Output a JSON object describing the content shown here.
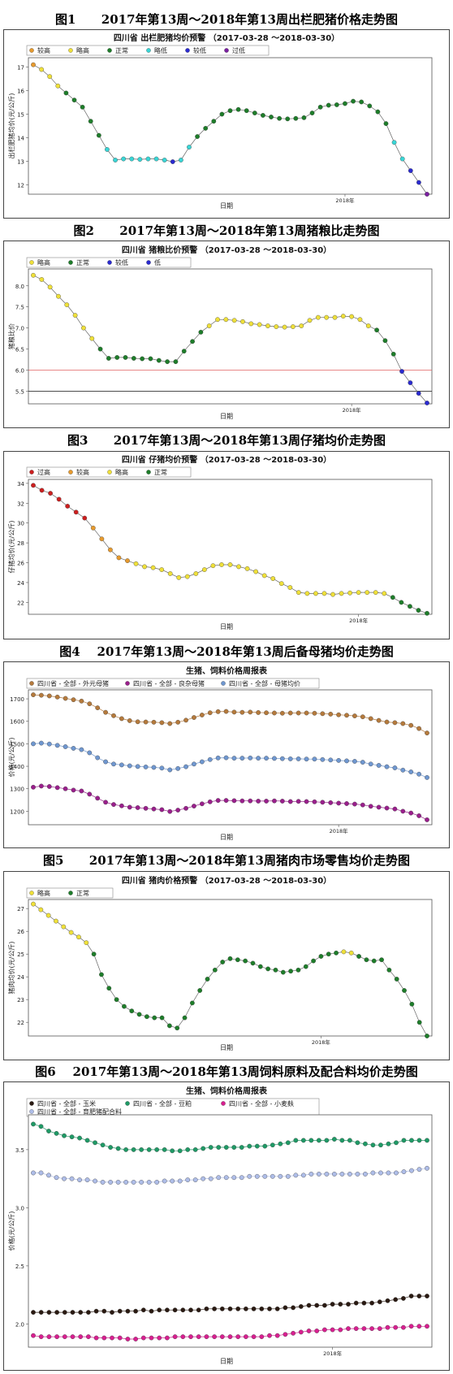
{
  "figures": [
    {
      "id": "fig1",
      "caption": "图1      2017年第13周～2018年第13周出栏肥猪价格走势图"
    },
    {
      "id": "fig2",
      "caption": "图2      2017年第13周～2018年第13周猪粮比走势图"
    },
    {
      "id": "fig3",
      "caption": "图3      2017年第13周～2018年第13周仔猪均价走势图"
    },
    {
      "id": "fig4",
      "caption": "图4    2017年第13周～2018年第13周后备母猪均价走势图"
    },
    {
      "id": "fig5",
      "caption": "图5      2017年第13周～2018年第13周猪肉市场零售均价走势图"
    },
    {
      "id": "fig6",
      "caption": "图6    2017年第13周～2018年第13周饲料原料及配合料均价走势图"
    }
  ],
  "status_colors": {
    "过高": "#cc1f1f",
    "较高": "#e69a2e",
    "略高": "#efe03a",
    "正常": "#1e7d2a",
    "略低": "#39d6d6",
    "较低": "#2a2ad0",
    "低": "#2a2ad0",
    "过低": "#7a1fa0"
  },
  "chart_data": [
    {
      "id": "fig1",
      "type": "scatter",
      "title": "四川省 出栏肥猪均价预警 （2017-03-28 ～2018-03-30）",
      "xlabel": "日期",
      "ylabel": "出栏肥猪均价(元/公斤)",
      "ylim": [
        11.6,
        17.4
      ],
      "yticks": [
        12,
        13,
        14,
        15,
        16,
        17
      ],
      "xtick_labels": [
        {
          "i": 38,
          "label": "2018年"
        }
      ],
      "legend": [
        "较高",
        "略高",
        "正常",
        "略低",
        "较低",
        "过低"
      ],
      "values": [
        17.1,
        16.9,
        16.6,
        16.2,
        15.9,
        15.6,
        15.3,
        14.7,
        14.1,
        13.5,
        13.05,
        13.1,
        13.1,
        13.08,
        13.1,
        13.1,
        13.05,
        12.98,
        13.05,
        13.6,
        14.05,
        14.4,
        14.7,
        15.0,
        15.15,
        15.2,
        15.15,
        15.05,
        14.95,
        14.88,
        14.82,
        14.8,
        14.82,
        14.85,
        15.05,
        15.3,
        15.38,
        15.4,
        15.45,
        15.55,
        15.52,
        15.35,
        15.1,
        14.6,
        13.8,
        13.1,
        12.6,
        12.1,
        11.6
      ],
      "status": [
        "较高",
        "略高",
        "略高",
        "略高",
        "正常",
        "正常",
        "正常",
        "正常",
        "正常",
        "略低",
        "略低",
        "略低",
        "略低",
        "略低",
        "略低",
        "略低",
        "略低",
        "较低",
        "略低",
        "略低",
        "正常",
        "正常",
        "正常",
        "正常",
        "正常",
        "正常",
        "正常",
        "正常",
        "正常",
        "正常",
        "正常",
        "正常",
        "正常",
        "正常",
        "正常",
        "正常",
        "正常",
        "正常",
        "正常",
        "正常",
        "正常",
        "正常",
        "正常",
        "正常",
        "略低",
        "略低",
        "较低",
        "较低",
        "过低"
      ]
    },
    {
      "id": "fig2",
      "type": "scatter",
      "title": "四川省 猪粮比价预警 （2017-03-28 ～2018-03-30）",
      "xlabel": "日期",
      "ylabel": "猪粮比价",
      "ylim": [
        5.2,
        8.4
      ],
      "yticks": [
        5.5,
        6.0,
        6.5,
        7.0,
        7.5,
        8.0
      ],
      "xtick_labels": [
        {
          "i": 38,
          "label": "2018年"
        }
      ],
      "ref_lines": [
        {
          "y": 6.0,
          "color": "#e06060"
        },
        {
          "y": 5.5,
          "color": "#333333"
        }
      ],
      "legend": [
        "略高",
        "正常",
        "较低",
        "低"
      ],
      "values": [
        8.25,
        8.15,
        7.97,
        7.75,
        7.55,
        7.3,
        7.0,
        6.75,
        6.5,
        6.28,
        6.3,
        6.3,
        6.28,
        6.27,
        6.27,
        6.23,
        6.2,
        6.2,
        6.45,
        6.68,
        6.9,
        7.05,
        7.2,
        7.2,
        7.18,
        7.15,
        7.1,
        7.08,
        7.05,
        7.03,
        7.02,
        7.03,
        7.05,
        7.18,
        7.25,
        7.25,
        7.25,
        7.28,
        7.27,
        7.2,
        7.05,
        6.95,
        6.7,
        6.38,
        5.97,
        5.7,
        5.45,
        5.22
      ],
      "status": [
        "略高",
        "略高",
        "略高",
        "略高",
        "略高",
        "略高",
        "略高",
        "略高",
        "正常",
        "正常",
        "正常",
        "正常",
        "正常",
        "正常",
        "正常",
        "正常",
        "正常",
        "正常",
        "正常",
        "正常",
        "正常",
        "略高",
        "略高",
        "略高",
        "略高",
        "略高",
        "略高",
        "略高",
        "略高",
        "略高",
        "略高",
        "略高",
        "略高",
        "略高",
        "略高",
        "略高",
        "略高",
        "略高",
        "略高",
        "略高",
        "略高",
        "正常",
        "正常",
        "正常",
        "较低",
        "较低",
        "低",
        "低"
      ]
    },
    {
      "id": "fig3",
      "type": "scatter",
      "title": "四川省 仔猪均价预警 （2017-03-28 ～2018-03-30）",
      "xlabel": "日期",
      "ylabel": "仔猪均价(元/公斤)",
      "ylim": [
        20.8,
        34.4
      ],
      "yticks": [
        22,
        24,
        26,
        28,
        30,
        32,
        34
      ],
      "xtick_labels": [
        {
          "i": 38,
          "label": "2018年"
        }
      ],
      "legend": [
        "过高",
        "较高",
        "略高",
        "正常"
      ],
      "values": [
        33.8,
        33.3,
        33.0,
        32.4,
        31.7,
        31.1,
        30.5,
        29.5,
        28.4,
        27.3,
        26.5,
        26.2,
        25.9,
        25.6,
        25.5,
        25.3,
        24.9,
        24.5,
        24.6,
        24.9,
        25.3,
        25.7,
        25.8,
        25.8,
        25.6,
        25.4,
        25.1,
        24.7,
        24.4,
        23.9,
        23.5,
        23.0,
        22.9,
        22.9,
        22.9,
        22.8,
        22.9,
        22.95,
        23.0,
        23.0,
        23.0,
        22.9,
        22.5,
        22.0,
        21.6,
        21.2,
        20.9
      ],
      "status": [
        "过高",
        "过高",
        "过高",
        "过高",
        "过高",
        "过高",
        "过高",
        "较高",
        "较高",
        "较高",
        "较高",
        "较高",
        "略高",
        "略高",
        "略高",
        "略高",
        "略高",
        "略高",
        "略高",
        "略高",
        "略高",
        "略高",
        "略高",
        "略高",
        "略高",
        "略高",
        "略高",
        "略高",
        "略高",
        "略高",
        "略高",
        "略高",
        "略高",
        "略高",
        "略高",
        "略高",
        "略高",
        "略高",
        "略高",
        "略高",
        "略高",
        "略高",
        "正常",
        "正常",
        "正常",
        "正常",
        "正常"
      ]
    },
    {
      "id": "fig4",
      "type": "scatter",
      "title": "生猪、饲料价格周报表",
      "xlabel": "日期",
      "ylabel": "价格(元/公斤)",
      "ylim": [
        1140,
        1740
      ],
      "yticks": [
        1200,
        1300,
        1400,
        1500,
        1600,
        1700
      ],
      "xtick_labels": [
        {
          "i": 38,
          "label": "2018年"
        }
      ],
      "series": [
        {
          "name": "四川省 - 全部 - 外元母猪",
          "color": "#b57a3c",
          "values": [
            1718,
            1716,
            1713,
            1708,
            1702,
            1696,
            1690,
            1678,
            1660,
            1640,
            1625,
            1612,
            1603,
            1598,
            1597,
            1596,
            1594,
            1590,
            1596,
            1605,
            1617,
            1628,
            1638,
            1643,
            1644,
            1641,
            1640,
            1641,
            1639,
            1638,
            1637,
            1636,
            1637,
            1637,
            1637,
            1636,
            1634,
            1632,
            1629,
            1627,
            1624,
            1620,
            1612,
            1604,
            1597,
            1594,
            1590,
            1582,
            1568,
            1548
          ]
        },
        {
          "name": "四川省 - 全部 - 良杂母猪",
          "color": "#9a1f8c",
          "values": [
            1307,
            1312,
            1310,
            1305,
            1300,
            1294,
            1290,
            1276,
            1258,
            1240,
            1230,
            1224,
            1218,
            1216,
            1213,
            1210,
            1207,
            1199,
            1205,
            1213,
            1223,
            1233,
            1242,
            1248,
            1248,
            1247,
            1246,
            1246,
            1245,
            1245,
            1246,
            1245,
            1243,
            1244,
            1243,
            1242,
            1240,
            1238,
            1236,
            1234,
            1232,
            1228,
            1222,
            1218,
            1214,
            1210,
            1200,
            1192,
            1180,
            1162
          ]
        },
        {
          "name": "四川省 - 全部 - 母猪均价",
          "color": "#6f97d0",
          "values": [
            1500,
            1503,
            1499,
            1493,
            1487,
            1480,
            1474,
            1460,
            1438,
            1420,
            1410,
            1406,
            1402,
            1399,
            1397,
            1395,
            1392,
            1384,
            1390,
            1398,
            1410,
            1420,
            1430,
            1437,
            1438,
            1436,
            1436,
            1437,
            1436,
            1436,
            1435,
            1434,
            1433,
            1433,
            1432,
            1432,
            1430,
            1428,
            1426,
            1424,
            1422,
            1418,
            1410,
            1404,
            1398,
            1393,
            1383,
            1375,
            1365,
            1350
          ]
        }
      ]
    },
    {
      "id": "fig5",
      "type": "scatter",
      "title": "四川省 猪肉价格预警 （2017-03-28 ～2018-03-30）",
      "xlabel": "日期",
      "ylabel": "猪肉均价(元/公斤)",
      "ylim": [
        21.4,
        27.4
      ],
      "yticks": [
        22,
        23,
        24,
        25,
        26,
        27
      ],
      "xtick_labels": [
        {
          "i": 38,
          "label": "2018年"
        }
      ],
      "legend": [
        "略高",
        "正常"
      ],
      "values": [
        27.2,
        26.95,
        26.7,
        26.45,
        26.2,
        25.95,
        25.75,
        25.5,
        25.0,
        24.1,
        23.5,
        23.0,
        22.7,
        22.5,
        22.35,
        22.25,
        22.2,
        22.2,
        21.85,
        21.75,
        22.2,
        22.85,
        23.4,
        23.9,
        24.3,
        24.65,
        24.8,
        24.75,
        24.7,
        24.6,
        24.45,
        24.35,
        24.3,
        24.2,
        24.25,
        24.3,
        24.45,
        24.7,
        24.9,
        25.0,
        25.05,
        25.1,
        25.05,
        24.9,
        24.75,
        24.7,
        24.75,
        24.3,
        23.9,
        23.4,
        22.8,
        22.0,
        21.4
      ],
      "status": [
        "略高",
        "略高",
        "略高",
        "略高",
        "略高",
        "略高",
        "略高",
        "略高",
        "正常",
        "正常",
        "正常",
        "正常",
        "正常",
        "正常",
        "正常",
        "正常",
        "正常",
        "正常",
        "正常",
        "正常",
        "正常",
        "正常",
        "正常",
        "正常",
        "正常",
        "正常",
        "正常",
        "正常",
        "正常",
        "正常",
        "正常",
        "正常",
        "正常",
        "正常",
        "正常",
        "正常",
        "正常",
        "正常",
        "正常",
        "正常",
        "正常",
        "略高",
        "略高",
        "正常",
        "正常",
        "正常",
        "正常",
        "正常",
        "正常",
        "正常",
        "正常",
        "正常",
        "正常"
      ]
    },
    {
      "id": "fig6",
      "type": "scatter",
      "title": "生猪、饲料价格周报表",
      "xlabel": "日期",
      "ylabel": "价格(元/公斤)",
      "ylim": [
        1.8,
        3.8
      ],
      "yticks": [
        2.0,
        2.5,
        3.0,
        3.5
      ],
      "xtick_labels": [
        {
          "i": 38,
          "label": "2018年"
        }
      ],
      "series": [
        {
          "name": "四川省 - 全部 - 玉米",
          "color": "#2a1a12",
          "values": [
            2.1,
            2.1,
            2.1,
            2.1,
            2.1,
            2.1,
            2.1,
            2.1,
            2.11,
            2.11,
            2.1,
            2.11,
            2.11,
            2.11,
            2.12,
            2.11,
            2.12,
            2.12,
            2.12,
            2.12,
            2.12,
            2.12,
            2.13,
            2.13,
            2.13,
            2.13,
            2.13,
            2.13,
            2.13,
            2.13,
            2.13,
            2.13,
            2.14,
            2.14,
            2.15,
            2.16,
            2.16,
            2.16,
            2.17,
            2.17,
            2.17,
            2.18,
            2.18,
            2.18,
            2.19,
            2.2,
            2.21,
            2.22,
            2.24,
            2.24,
            2.24
          ]
        },
        {
          "name": "四川省 - 全部 - 豆粕",
          "color": "#1f9a66",
          "values": [
            3.72,
            3.7,
            3.66,
            3.64,
            3.62,
            3.61,
            3.6,
            3.58,
            3.56,
            3.54,
            3.52,
            3.51,
            3.5,
            3.5,
            3.5,
            3.5,
            3.5,
            3.5,
            3.49,
            3.49,
            3.5,
            3.5,
            3.51,
            3.52,
            3.52,
            3.52,
            3.52,
            3.52,
            3.53,
            3.53,
            3.53,
            3.54,
            3.55,
            3.56,
            3.58,
            3.58,
            3.58,
            3.58,
            3.58,
            3.59,
            3.58,
            3.58,
            3.56,
            3.55,
            3.54,
            3.54,
            3.55,
            3.56,
            3.58,
            3.58,
            3.58,
            3.58
          ]
        },
        {
          "name": "四川省 - 全部 - 小麦麸",
          "color": "#d81f90",
          "values": [
            1.9,
            1.89,
            1.89,
            1.89,
            1.89,
            1.89,
            1.89,
            1.89,
            1.88,
            1.88,
            1.88,
            1.88,
            1.87,
            1.87,
            1.88,
            1.88,
            1.88,
            1.88,
            1.89,
            1.89,
            1.89,
            1.89,
            1.89,
            1.89,
            1.89,
            1.89,
            1.89,
            1.89,
            1.89,
            1.89,
            1.9,
            1.9,
            1.91,
            1.92,
            1.93,
            1.94,
            1.94,
            1.95,
            1.95,
            1.95,
            1.96,
            1.96,
            1.96,
            1.96,
            1.96,
            1.97,
            1.97,
            1.97,
            1.98,
            1.98,
            1.98
          ]
        },
        {
          "name": "四川省 - 全部 - 育肥猪配合料",
          "color": "#aebde8",
          "values": [
            3.3,
            3.3,
            3.28,
            3.26,
            3.25,
            3.25,
            3.24,
            3.24,
            3.23,
            3.22,
            3.22,
            3.22,
            3.22,
            3.22,
            3.22,
            3.22,
            3.22,
            3.23,
            3.23,
            3.23,
            3.24,
            3.24,
            3.25,
            3.25,
            3.26,
            3.26,
            3.26,
            3.26,
            3.27,
            3.27,
            3.27,
            3.27,
            3.27,
            3.27,
            3.28,
            3.28,
            3.29,
            3.29,
            3.29,
            3.29,
            3.29,
            3.29,
            3.29,
            3.29,
            3.3,
            3.3,
            3.3,
            3.3,
            3.31,
            3.32,
            3.33,
            3.34
          ]
        }
      ]
    }
  ]
}
